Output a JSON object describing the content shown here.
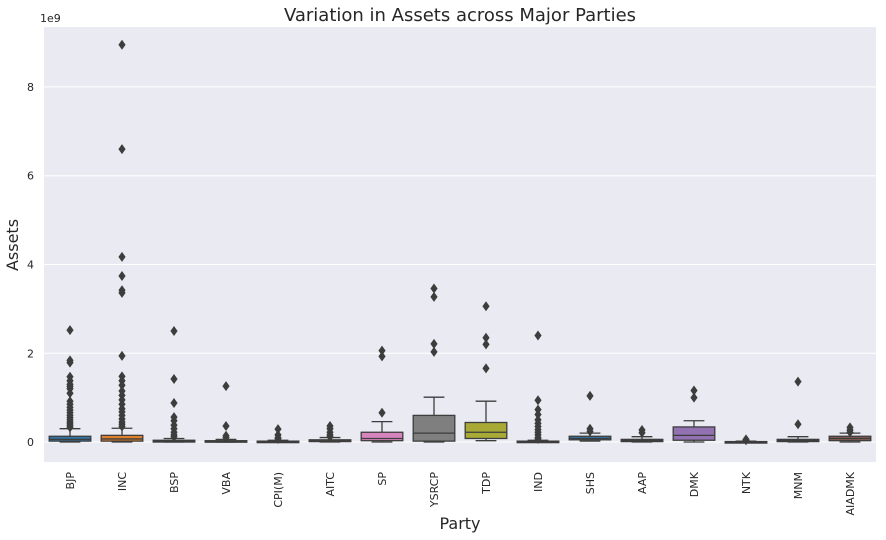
{
  "chart_data": {
    "type": "box",
    "title": "Variation in Assets across Major Parties",
    "xlabel": "Party",
    "ylabel": "Assets",
    "y_offset_label": "1e9",
    "y_unit_multiplier": 1000000000,
    "ylim": [
      -0.45,
      9.35
    ],
    "yticks": [
      0,
      2,
      4,
      6,
      8
    ],
    "grid": true,
    "legend": "none",
    "categories": [
      "BJP",
      "INC",
      "BSP",
      "VBA",
      "CPI(M)",
      "AITC",
      "SP",
      "YSRCP",
      "TDP",
      "IND",
      "SHS",
      "AAP",
      "DMK",
      "NTK",
      "MNM",
      "AIADMK"
    ],
    "boxes": [
      {
        "name": "BJP",
        "color": "#3274a1",
        "whisker_low": 0.0,
        "q1": 0.02,
        "median": 0.06,
        "q3": 0.13,
        "whisker_high": 0.3,
        "outliers": [
          2.52,
          1.84,
          1.79,
          1.47,
          1.38,
          1.3,
          1.25,
          1.2,
          1.1,
          0.92,
          0.85,
          0.78,
          0.72,
          0.66,
          0.6,
          0.55,
          0.5,
          0.45,
          0.41,
          0.37,
          0.33
        ]
      },
      {
        "name": "INC",
        "color": "#e1812c",
        "whisker_low": 0.0,
        "q1": 0.02,
        "median": 0.07,
        "q3": 0.15,
        "whisker_high": 0.31,
        "outliers": [
          8.95,
          6.6,
          4.17,
          3.74,
          3.42,
          3.36,
          1.94,
          1.48,
          1.38,
          1.28,
          1.15,
          1.05,
          0.95,
          0.85,
          0.75,
          0.68,
          0.6,
          0.52,
          0.45,
          0.4,
          0.35
        ]
      },
      {
        "name": "BSP",
        "color": "#3a923a",
        "whisker_low": 0.0,
        "q1": 0.0,
        "median": 0.02,
        "q3": 0.04,
        "whisker_high": 0.08,
        "outliers": [
          2.5,
          1.42,
          0.88,
          0.56,
          0.48,
          0.38,
          0.3,
          0.22,
          0.16,
          0.12
        ]
      },
      {
        "name": "VBA",
        "color": "#c03d3e",
        "whisker_low": 0.0,
        "q1": 0.0,
        "median": 0.01,
        "q3": 0.03,
        "whisker_high": 0.06,
        "outliers": [
          1.26,
          0.36,
          0.14,
          0.1
        ]
      },
      {
        "name": "CPI(M)",
        "color": "#9372b2",
        "whisker_low": 0.0,
        "q1": 0.0,
        "median": 0.01,
        "q3": 0.02,
        "whisker_high": 0.04,
        "outliers": [
          0.29,
          0.16,
          0.1,
          0.07
        ]
      },
      {
        "name": "AITC",
        "color": "#845b53",
        "whisker_low": 0.0,
        "q1": 0.01,
        "median": 0.02,
        "q3": 0.05,
        "whisker_high": 0.1,
        "outliers": [
          0.36,
          0.3,
          0.22,
          0.16,
          0.12
        ]
      },
      {
        "name": "SP",
        "color": "#d684bd",
        "whisker_low": 0.0,
        "q1": 0.03,
        "median": 0.08,
        "q3": 0.22,
        "whisker_high": 0.46,
        "outliers": [
          2.06,
          1.93,
          0.66
        ]
      },
      {
        "name": "YSRCP",
        "color": "#7f7f7f",
        "whisker_low": 0.0,
        "q1": 0.02,
        "median": 0.2,
        "q3": 0.6,
        "whisker_high": 1.01,
        "outliers": [
          3.46,
          3.27,
          2.21,
          2.03
        ]
      },
      {
        "name": "TDP",
        "color": "#a9aa35",
        "whisker_low": 0.03,
        "q1": 0.08,
        "median": 0.22,
        "q3": 0.44,
        "whisker_high": 0.92,
        "outliers": [
          3.06,
          2.35,
          2.2,
          1.66
        ]
      },
      {
        "name": "IND",
        "color": "#2eabb8",
        "whisker_low": 0.0,
        "q1": 0.0,
        "median": 0.0,
        "q3": 0.02,
        "whisker_high": 0.04,
        "outliers": [
          2.4,
          0.94,
          0.73,
          0.62,
          0.5,
          0.42,
          0.35,
          0.28,
          0.22,
          0.16,
          0.1,
          0.07
        ]
      },
      {
        "name": "SHS",
        "color": "#3274a1",
        "whisker_low": 0.02,
        "q1": 0.05,
        "median": 0.08,
        "q3": 0.13,
        "whisker_high": 0.2,
        "outliers": [
          1.04,
          0.3,
          0.24
        ]
      },
      {
        "name": "AAP",
        "color": "#e1812c",
        "whisker_low": 0.0,
        "q1": 0.01,
        "median": 0.03,
        "q3": 0.06,
        "whisker_high": 0.12,
        "outliers": [
          0.27,
          0.21
        ]
      },
      {
        "name": "DMK",
        "color": "#9372b2",
        "whisker_low": 0.0,
        "q1": 0.04,
        "median": 0.15,
        "q3": 0.34,
        "whisker_high": 0.48,
        "outliers": [
          1.16,
          1.0
        ]
      },
      {
        "name": "NTK",
        "color": "#c03d3e",
        "whisker_low": 0.0,
        "q1": 0.0,
        "median": 0.0,
        "q3": 0.01,
        "whisker_high": 0.02,
        "outliers": [
          0.06,
          0.04
        ]
      },
      {
        "name": "MNM",
        "color": "#2eabb8",
        "whisker_low": 0.0,
        "q1": 0.01,
        "median": 0.03,
        "q3": 0.06,
        "whisker_high": 0.12,
        "outliers": [
          1.36,
          0.4
        ]
      },
      {
        "name": "AIADMK",
        "color": "#845b53",
        "whisker_low": 0.0,
        "q1": 0.03,
        "median": 0.08,
        "q3": 0.13,
        "whisker_high": 0.2,
        "outliers": [
          0.33,
          0.27,
          0.22
        ]
      }
    ]
  }
}
